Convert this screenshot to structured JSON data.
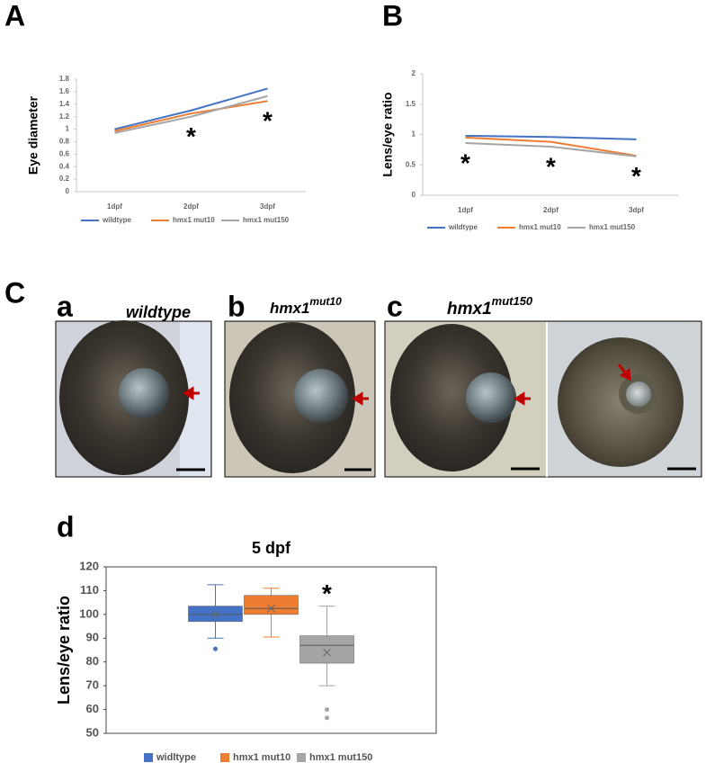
{
  "labels": {
    "A": "A",
    "B": "B",
    "C": "C",
    "a": "a",
    "a_title": "wildtype",
    "b": "b",
    "b_gene": "hmx1",
    "b_allele": "mut10",
    "c": "c",
    "c_gene": "hmx1",
    "c_allele": "mut150",
    "d": "d"
  },
  "chart_data": [
    {
      "type": "line",
      "ylabel": "Eye diameter",
      "categories": [
        "1dpf",
        "2dpf",
        "3dpf"
      ],
      "series": [
        {
          "name": "wildtype",
          "color": "#4472c4",
          "values": [
            1.0,
            1.3,
            1.65
          ]
        },
        {
          "name": "hmx1 mut10",
          "color": "#ed7d31",
          "values": [
            0.97,
            1.25,
            1.45
          ]
        },
        {
          "name": "hmx1 mut150",
          "color": "#a5a5a5",
          "values": [
            0.94,
            1.2,
            1.53
          ]
        }
      ],
      "ylim": [
        0,
        1.8
      ],
      "yticks": [
        0,
        0.2,
        0.4,
        0.6,
        0.8,
        1,
        1.2,
        1.4,
        1.6,
        1.8
      ],
      "grid": false,
      "annotations": [
        {
          "text": "*",
          "x": "2dpf"
        },
        {
          "text": "*",
          "x": "3dpf"
        }
      ]
    },
    {
      "type": "line",
      "ylabel": "Lens/eye ratio",
      "categories": [
        "1dpf",
        "2dpf",
        "3dpf"
      ],
      "series": [
        {
          "name": "wildtype",
          "color": "#4472c4",
          "values": [
            0.98,
            0.96,
            0.92
          ]
        },
        {
          "name": "hmx1 mut10",
          "color": "#ed7d31",
          "values": [
            0.95,
            0.88,
            0.65
          ]
        },
        {
          "name": "hmx1 mut150",
          "color": "#a5a5a5",
          "values": [
            0.86,
            0.8,
            0.64
          ]
        }
      ],
      "ylim": [
        0,
        2
      ],
      "yticks": [
        0,
        0.5,
        1,
        1.5,
        2
      ],
      "grid": false,
      "annotations": [
        {
          "text": "*",
          "x": "1dpf"
        },
        {
          "text": "*",
          "x": "2dpf"
        },
        {
          "text": "*",
          "x": "3dpf"
        }
      ]
    },
    {
      "type": "box",
      "title": "5 dpf",
      "ylabel": "Lens/eye ratio",
      "series": [
        {
          "name": "widltype",
          "color": "#4472c4",
          "min": 90,
          "q1": 97,
          "median": 100,
          "q3": 103.5,
          "max": 112.5,
          "mean": 100,
          "outliers": [
            85.5
          ]
        },
        {
          "name": "hmx1 mut10",
          "color": "#ed7d31",
          "min": 90.5,
          "q1": 100,
          "median": 102.5,
          "q3": 108,
          "max": 111,
          "mean": 102.5,
          "outliers": []
        },
        {
          "name": "hmx1 mut150",
          "color": "#a5a5a5",
          "min": 70,
          "q1": 79.5,
          "median": 87,
          "q3": 91,
          "max": 103.5,
          "mean": 84,
          "outliers": [
            60,
            56.5
          ]
        }
      ],
      "ylim": [
        50,
        120
      ],
      "yticks": [
        50,
        60,
        70,
        80,
        90,
        100,
        110,
        120
      ],
      "grid": false,
      "annotations": [
        {
          "text": "*",
          "x": "hmx1 mut150"
        }
      ]
    }
  ]
}
